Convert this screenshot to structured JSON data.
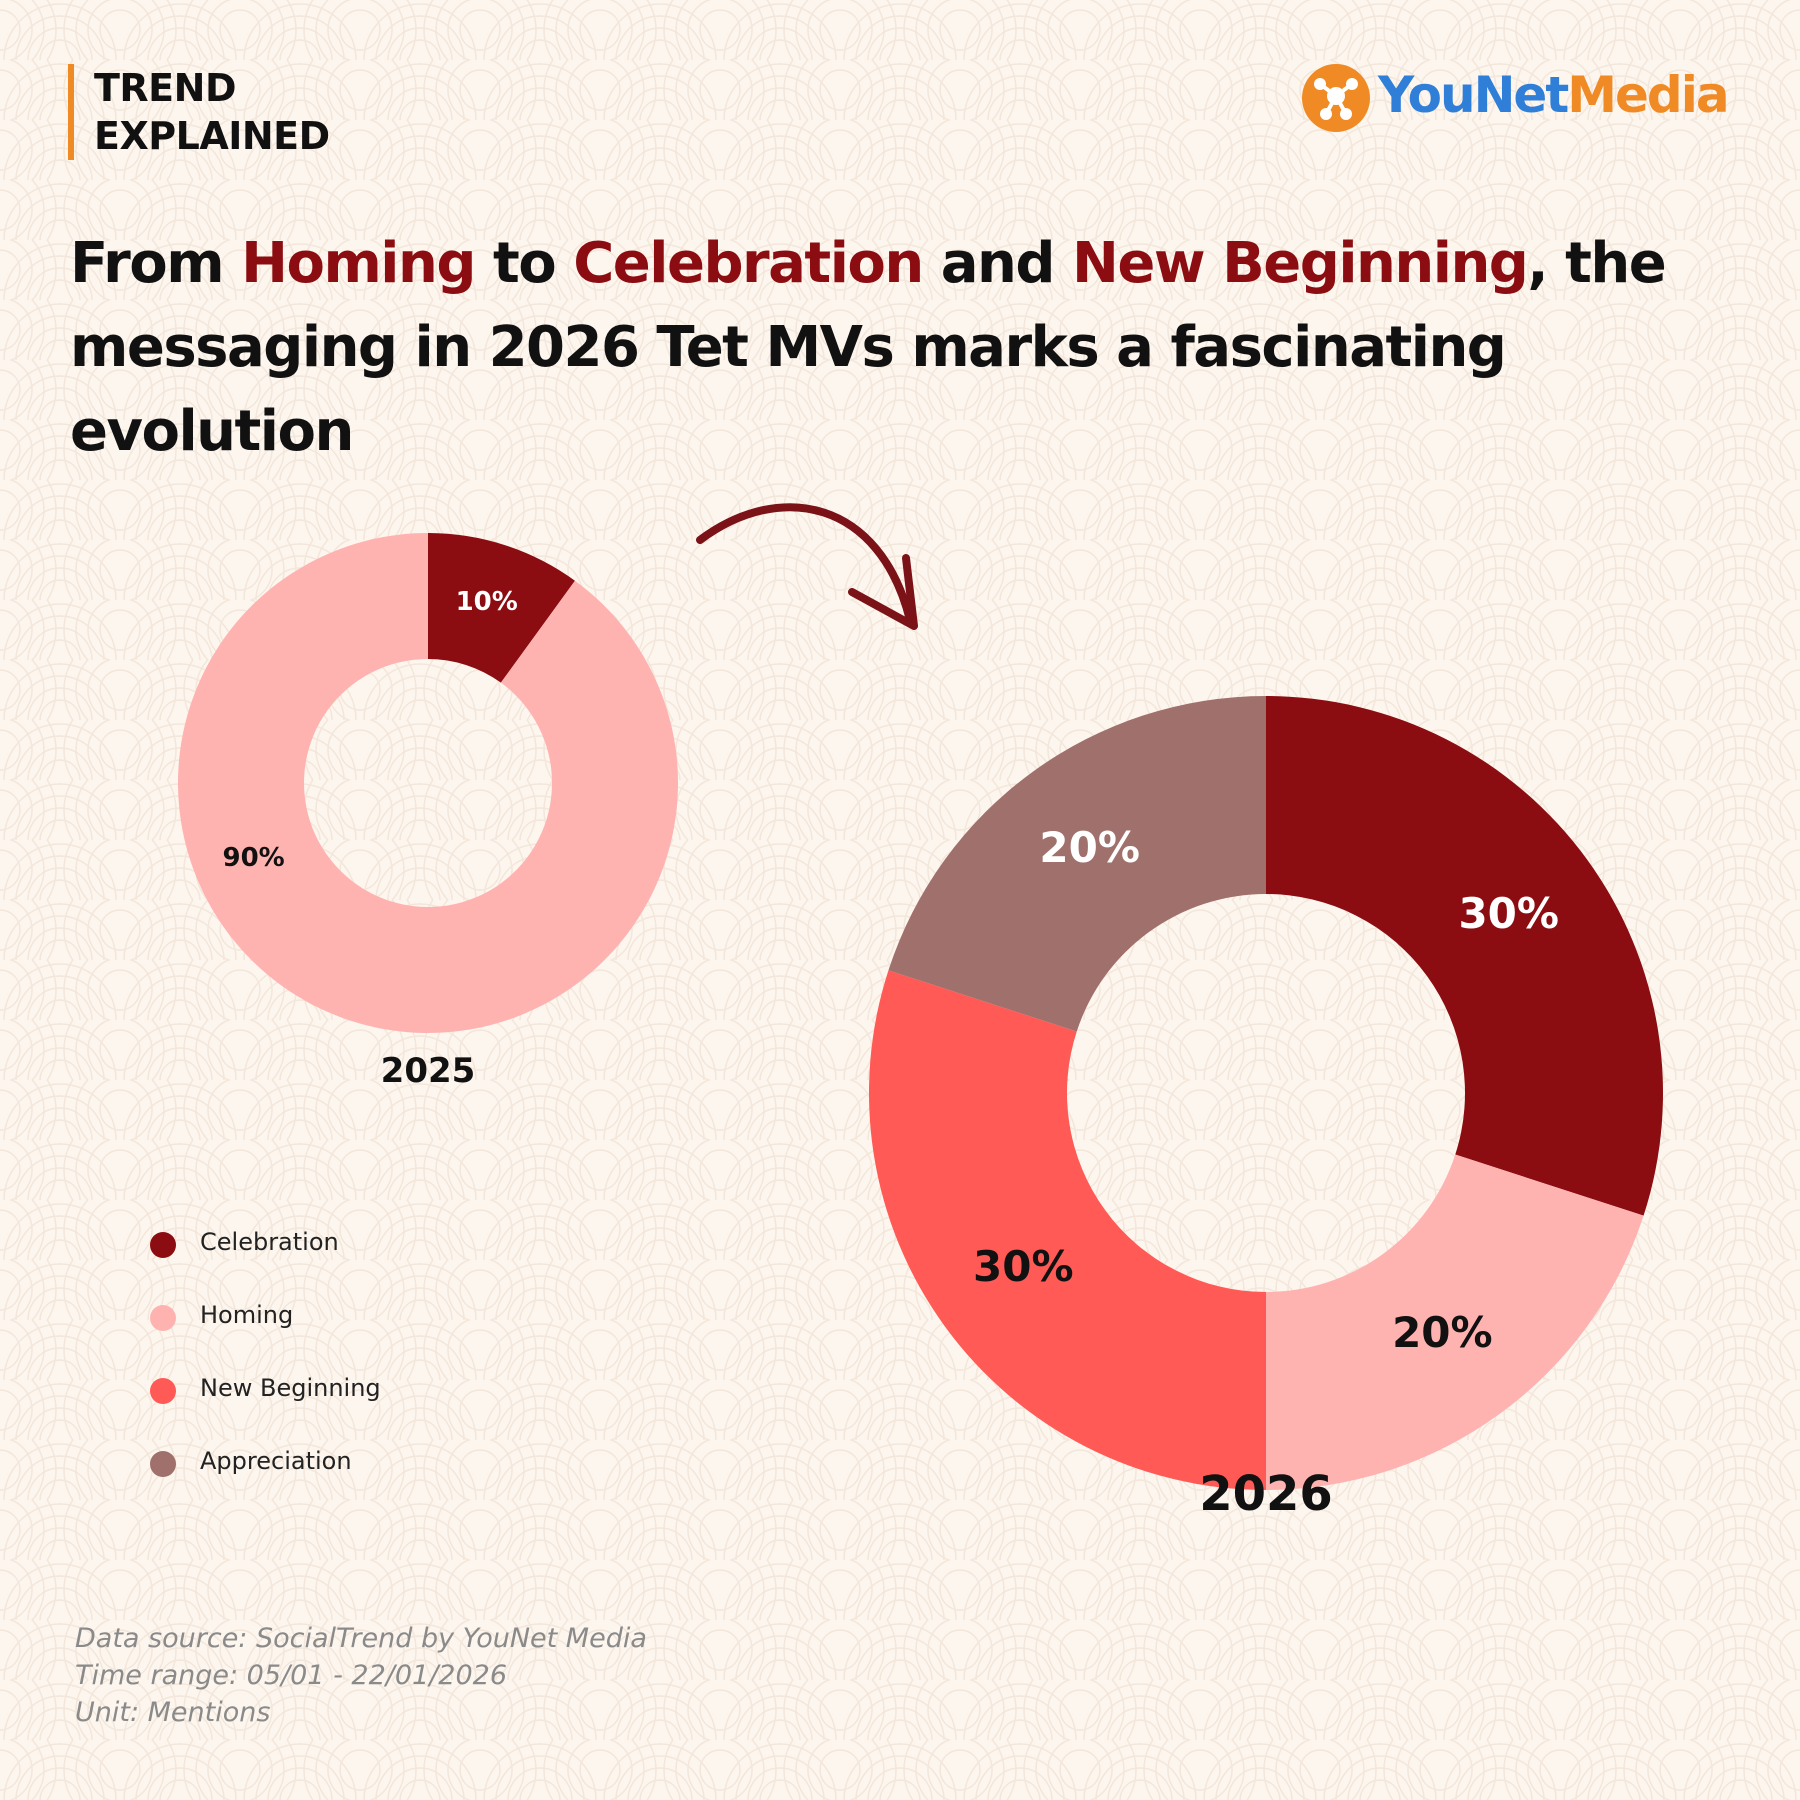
{
  "tag": {
    "line1": "TREND",
    "line2": "EXPLAINED"
  },
  "logo": {
    "part1": "YouNet",
    "part2": "Media",
    "icon": "younet-logo-icon"
  },
  "headline": {
    "p1": "From ",
    "h1": "Homing",
    "p2": " to ",
    "h2": "Celebration",
    "p3": " and ",
    "h3": "New Beginning",
    "p4": ", the messaging in 2026 Tet MVs marks a fascinating evolution"
  },
  "colors": {
    "Celebration": "#8b0d11",
    "Homing": "#ffb3b1",
    "New Beginning": "#ff5a55",
    "Appreciation": "#a0706c",
    "accent": "#f08a24"
  },
  "chart_data": [
    {
      "type": "pie",
      "variant": "donut",
      "title": "2025",
      "slices": [
        {
          "category": "Celebration",
          "value": 10,
          "label": "10%"
        },
        {
          "category": "Homing",
          "value": 90,
          "label": "90%"
        }
      ]
    },
    {
      "type": "pie",
      "variant": "donut",
      "title": "2026",
      "slices": [
        {
          "category": "Celebration",
          "value": 30,
          "label": "30%"
        },
        {
          "category": "Homing",
          "value": 20,
          "label": "20%"
        },
        {
          "category": "New Beginning",
          "value": 30,
          "label": "30%"
        },
        {
          "category": "Appreciation",
          "value": 20,
          "label": "20%"
        }
      ]
    }
  ],
  "legend": [
    "Celebration",
    "Homing",
    "New Beginning",
    "Appreciation"
  ],
  "source": {
    "line1": "Data source: SocialTrend by YouNet Media",
    "line2": "Time range: 05/01 - 22/01/2026",
    "line3": "Unit: Mentions"
  }
}
